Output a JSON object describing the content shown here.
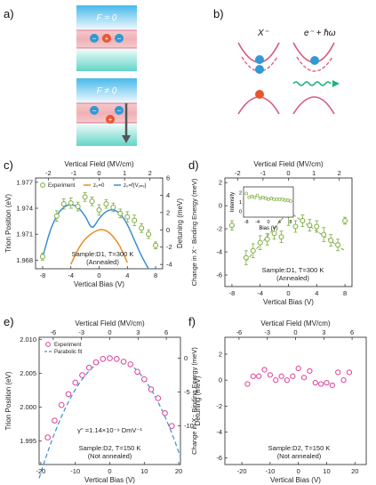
{
  "panel_labels": [
    "a)",
    "b)",
    "c)",
    "d)",
    "e)",
    "f)"
  ],
  "diagram_a": {
    "top_label": "F = 0",
    "bottom_label": "F ≠ 0",
    "charge_minus": "−",
    "charge_plus": "+"
  },
  "diagram_b": {
    "left_label": "X⁻",
    "right_label": "e⁻ + ħω"
  },
  "colors": {
    "exp": "#7aab3d",
    "fit_blue": "#3b8fd4",
    "fit_orange": "#ee8a22",
    "pink": "#e0409a",
    "parabolic": "#3b8fd4",
    "band_red": "#d9577a",
    "band_blue": "#2f9ad6",
    "well_pink": "#f0b7be",
    "barrier_cyan": "#a9dfd9",
    "photon": "#1ab57a"
  },
  "chart_data": [
    {
      "id": "c",
      "type": "scatter",
      "title": "",
      "top_axis_label": "Vertical Field (MV/cm)",
      "top_ticks": [
        "-2",
        "-1",
        "0",
        "1",
        "2"
      ],
      "xlabel": "Vertical Bias (V)",
      "ylabel": "Trion Position (eV)",
      "y2label": "Detuning (meV)",
      "xlim": [
        -9,
        9
      ],
      "ylim": [
        1.967,
        1.9775
      ],
      "x_ticks": [
        -8,
        -4,
        0,
        4,
        8
      ],
      "y_ticks": [
        1.968,
        1.971,
        1.974,
        1.977
      ],
      "y2_ticks": [
        6,
        4,
        2,
        0,
        -2,
        -4
      ],
      "legend": {
        "position": "top",
        "entries": [
          "Experiment",
          "z₀=0",
          "z₀=f(Vₒₙₑ)"
        ]
      },
      "series": [
        {
          "name": "Experiment",
          "x": [
            -8,
            -6,
            -5,
            -4,
            -3,
            -2,
            -1,
            0,
            1,
            2,
            3,
            4,
            5,
            6,
            7,
            8
          ],
          "y": [
            1.9684,
            1.9731,
            1.9745,
            1.9746,
            1.9742,
            1.9753,
            1.9748,
            1.9738,
            1.9745,
            1.9741,
            1.9734,
            1.973,
            1.9726,
            1.9717,
            1.971,
            1.9697
          ],
          "err": [
            0.0004,
            0.0006,
            0.0006,
            0.0006,
            0.0005,
            0.0005,
            0.0005,
            0.0006,
            0.0005,
            0.0005,
            0.0005,
            0.0006,
            0.0006,
            0.0005,
            0.0005,
            0.0004
          ]
        },
        {
          "name": "z₀=0",
          "x": [
            -4,
            -3,
            -2,
            -1,
            0,
            1,
            2,
            3,
            4
          ],
          "y": [
            1.9675,
            1.9692,
            1.9704,
            1.9711,
            1.9715,
            1.9714,
            1.9707,
            1.9695,
            1.9677
          ]
        },
        {
          "name": "z₀=f(Vₒₙₑ)",
          "x": [
            -8,
            -7,
            -6,
            -5,
            -4,
            -3,
            -2,
            -1,
            0,
            1,
            2,
            3,
            4,
            5,
            6,
            7
          ],
          "y": [
            1.9683,
            1.9712,
            1.9731,
            1.9741,
            1.9744,
            1.9741,
            1.9731,
            1.9718,
            1.9728,
            1.9736,
            1.9738,
            1.9733,
            1.9721,
            1.9703,
            1.9685,
            1.967
          ]
        }
      ],
      "annotations": [
        "Sample:D1, T=300 K",
        "(Annealed)"
      ]
    },
    {
      "id": "d",
      "type": "scatter",
      "title": "",
      "top_axis_label": "Vertical Field (MV/cm)",
      "top_ticks": [
        "-2",
        "-1",
        "0",
        "1",
        "2"
      ],
      "xlabel": "Vertical Bias (V)",
      "ylabel": "Change in X⁻ Binding Energy (meV)",
      "xlim": [
        -9,
        9
      ],
      "ylim": [
        -7,
        2.4
      ],
      "x_ticks": [
        -8,
        -4,
        0,
        4,
        8
      ],
      "y_ticks": [
        -6,
        -4,
        -2,
        0,
        2
      ],
      "series": [
        {
          "name": "Experiment",
          "x": [
            -8,
            -6,
            -5,
            -4,
            -3,
            -2,
            -1,
            0,
            1,
            2,
            3,
            4,
            5,
            6,
            7,
            8
          ],
          "y": [
            -1.7,
            -4.5,
            -3.9,
            -3.2,
            -2.9,
            -2.4,
            -2.7,
            -0.8,
            -1.8,
            -1.3,
            -1.7,
            -1.8,
            -2.5,
            -3.0,
            -3.4,
            -1.3
          ],
          "err": [
            0.4,
            0.6,
            0.6,
            0.6,
            0.5,
            0.5,
            0.5,
            0.9,
            0.5,
            0.5,
            0.5,
            0.5,
            0.6,
            0.5,
            0.5,
            0.3
          ]
        }
      ],
      "fit_lines": [
        {
          "x": [
            -6,
            0
          ],
          "y": [
            -4.8,
            -0.5
          ]
        },
        {
          "x": [
            0,
            8
          ],
          "y": [
            -0.5,
            -3.9
          ]
        }
      ],
      "inset": {
        "xlabel": "Bias (V)",
        "ylabel": "Intensity",
        "xlim": [
          -9,
          9
        ],
        "ylim": [
          -0.6,
          2.6
        ],
        "x_ticks": [
          -8,
          -4,
          0,
          4,
          8
        ],
        "y_ticks": [
          0,
          1,
          2
        ],
        "x": [
          -8,
          -7,
          -6,
          -5,
          -4,
          -3,
          -2,
          -1,
          0,
          1,
          2,
          3,
          4,
          5,
          6,
          7,
          8
        ],
        "y": [
          1.9,
          1.5,
          1.6,
          1.5,
          1.7,
          1.4,
          1.5,
          1.4,
          1.3,
          1.4,
          1.3,
          1.3,
          1.3,
          1.3,
          1.2,
          1.2,
          1.1
        ]
      },
      "annotations": [
        "Sample:D1, T=300 K",
        "(Annealed)"
      ]
    },
    {
      "id": "e",
      "type": "scatter",
      "title": "",
      "top_axis_label": "Vertical Field (MV/cm)",
      "top_ticks": [
        "-6",
        "-3",
        "0",
        "3",
        "6"
      ],
      "xlabel": "Vertical Bias (V)",
      "ylabel": "Trion Position (eV)",
      "y2label": "Detuning (meV)",
      "xlim": [
        -20.5,
        20.5
      ],
      "ylim": [
        1.9915,
        2.0103
      ],
      "x_ticks": [
        -20,
        -10,
        0,
        10,
        20
      ],
      "y_ticks": [
        1.995,
        2.0,
        2.005,
        2.01
      ],
      "y2_ticks": [
        0,
        -5,
        -10
      ],
      "legend": {
        "position": "top-left",
        "entries": [
          "Experiment",
          "Parabolic fit"
        ]
      },
      "series": [
        {
          "name": "Experiment",
          "x": [
            -18,
            -16,
            -14,
            -12,
            -10,
            -8,
            -6,
            -4,
            -2,
            0,
            2,
            4,
            6,
            8,
            10,
            12,
            14,
            16,
            18
          ],
          "y": [
            1.9955,
            1.998,
            2.0003,
            2.0019,
            2.0036,
            2.0047,
            2.0058,
            2.0066,
            2.0071,
            2.0072,
            2.0071,
            2.0067,
            2.0063,
            2.0052,
            2.0041,
            2.0026,
            2.0013,
            1.9991,
            1.9972
          ]
        },
        {
          "name": "Parabolic fit",
          "fit": {
            "a": -3.84e-05,
            "x0": 1.0,
            "c": 2.00722
          }
        }
      ],
      "annotations": [
        "γ'' =1.14×10⁻⁹ DmV⁻¹",
        "Sample:D2, T=150 K",
        "(Not annealed)"
      ]
    },
    {
      "id": "f",
      "type": "scatter",
      "title": "",
      "top_axis_label": "Vertical Field (MV/cm)",
      "top_ticks": [
        "-6",
        "-3",
        "0",
        "3",
        "6"
      ],
      "xlabel": "Vertical Bias (V)",
      "ylabel": "Change in X⁻ Binding Energy (meV)",
      "xlim": [
        -26,
        24
      ],
      "ylim": [
        -6.5,
        3.3
      ],
      "x_ticks": [
        -20,
        -10,
        0,
        10,
        20
      ],
      "y_ticks": [
        -6,
        -4,
        -2,
        0,
        2
      ],
      "series": [
        {
          "name": "Experiment",
          "x": [
            -18,
            -16,
            -14,
            -12,
            -10,
            -8,
            -6,
            -4,
            -2,
            0,
            2,
            4,
            6,
            8,
            10,
            12,
            14,
            16,
            18
          ],
          "y": [
            -0.3,
            0.3,
            0.3,
            0.8,
            0.4,
            0.0,
            0.3,
            0.0,
            0.3,
            0.9,
            0.2,
            0.7,
            -0.2,
            -0.3,
            -0.2,
            -0.4,
            0.6,
            0.0,
            0.6
          ]
        }
      ],
      "annotations": [
        "Sample:D2, T=150 K",
        "(Not annealed)"
      ]
    }
  ]
}
